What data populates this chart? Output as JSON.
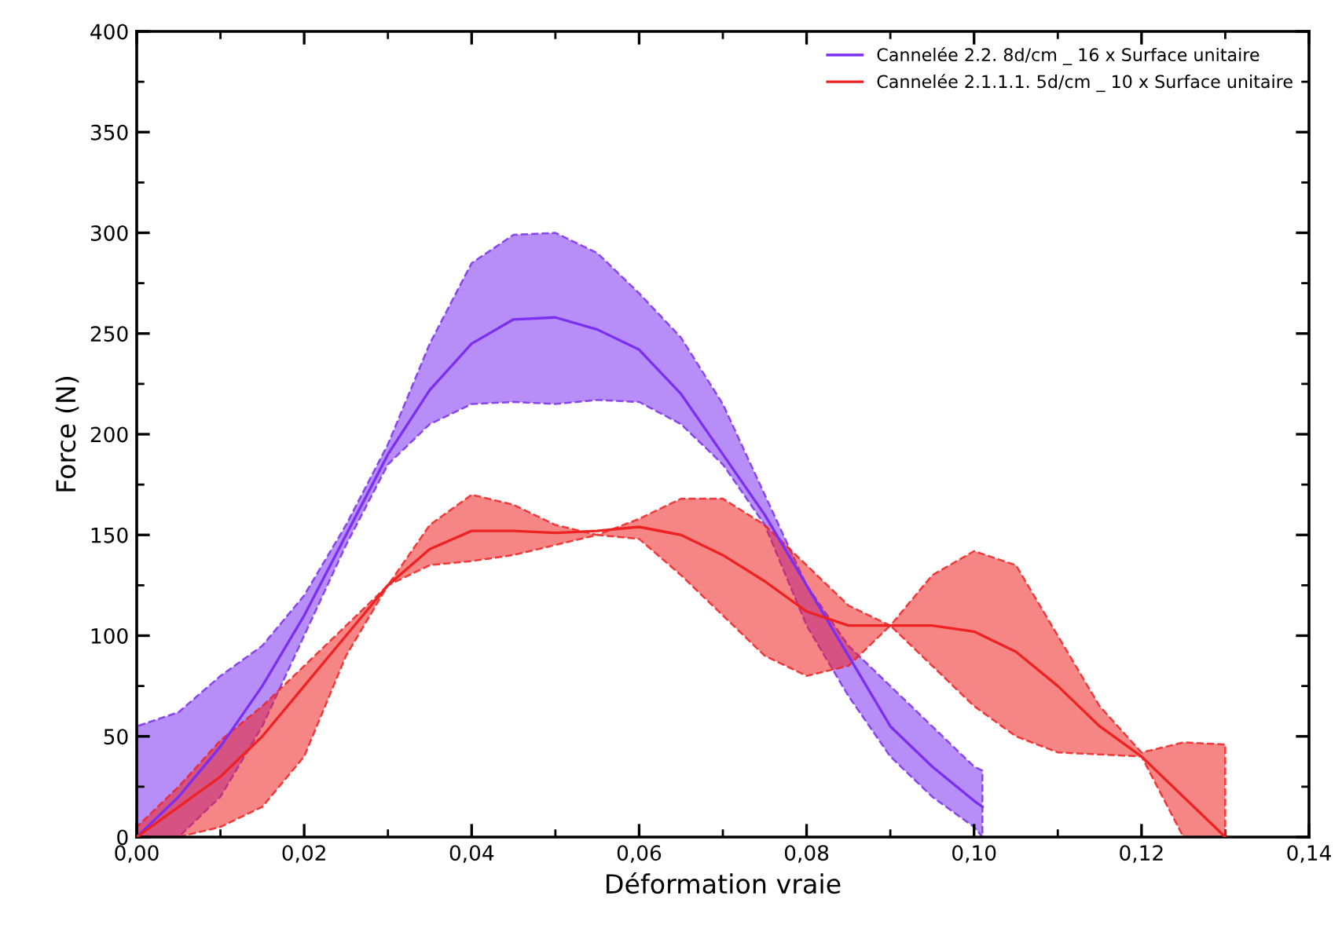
{
  "chart_data": {
    "type": "line",
    "xlabel": "Déformation vraie",
    "ylabel": "Force (N)",
    "xlim": [
      0,
      0.14
    ],
    "ylim": [
      0,
      400
    ],
    "xticks": [
      {
        "value": 0,
        "label": "0,00"
      },
      {
        "value": 0.02,
        "label": "0,02"
      },
      {
        "value": 0.04,
        "label": "0,04"
      },
      {
        "value": 0.06,
        "label": "0,06"
      },
      {
        "value": 0.08,
        "label": "0,08"
      },
      {
        "value": 0.1,
        "label": "0,10"
      },
      {
        "value": 0.12,
        "label": "0,12"
      },
      {
        "value": 0.14,
        "label": "0,14"
      }
    ],
    "yticks": [
      0,
      50,
      100,
      150,
      200,
      250,
      300,
      350,
      400
    ],
    "grid": false,
    "legend": "top right",
    "line_style": "solid",
    "marker": "none",
    "series": [
      {
        "name": "Cannelée 2.2. 8d/cm _ 16 x Surface unitaire",
        "color": "#7b2ff0",
        "x": [
          0,
          0.005,
          0.01,
          0.015,
          0.02,
          0.025,
          0.03,
          0.035,
          0.04,
          0.045,
          0.05,
          0.055,
          0.06,
          0.065,
          0.07,
          0.075,
          0.08,
          0.085,
          0.09,
          0.095,
          0.1,
          0.101
        ],
        "values": [
          0,
          20,
          45,
          75,
          110,
          150,
          190,
          222,
          245,
          257,
          258,
          252,
          242,
          220,
          190,
          160,
          125,
          90,
          55,
          35,
          18,
          15
        ],
        "upper": [
          55,
          62,
          80,
          95,
          120,
          155,
          195,
          245,
          285,
          299,
          300,
          290,
          270,
          248,
          215,
          170,
          125,
          95,
          75,
          55,
          35,
          33
        ],
        "lower": [
          0,
          0,
          20,
          55,
          100,
          145,
          185,
          205,
          215,
          216,
          215,
          217,
          216,
          205,
          185,
          155,
          105,
          70,
          40,
          20,
          5,
          0
        ]
      },
      {
        "name": "Cannelée 2.1.1.1. 5d/cm _ 10 x Surface unitaire",
        "color": "#ee2222",
        "x": [
          0,
          0.005,
          0.01,
          0.015,
          0.02,
          0.025,
          0.03,
          0.035,
          0.04,
          0.045,
          0.05,
          0.055,
          0.06,
          0.065,
          0.07,
          0.075,
          0.08,
          0.085,
          0.09,
          0.095,
          0.1,
          0.105,
          0.11,
          0.115,
          0.12,
          0.125,
          0.13
        ],
        "values": [
          0,
          15,
          30,
          50,
          75,
          100,
          125,
          143,
          152,
          152,
          151,
          152,
          154,
          150,
          140,
          127,
          112,
          105,
          105,
          105,
          102,
          92,
          75,
          55,
          40,
          20,
          0
        ],
        "upper": [
          5,
          25,
          48,
          65,
          85,
          105,
          125,
          155,
          170,
          165,
          155,
          150,
          158,
          168,
          168,
          155,
          135,
          115,
          105,
          130,
          142,
          135,
          100,
          65,
          42,
          47,
          46
        ],
        "lower": [
          0,
          0,
          5,
          15,
          40,
          90,
          125,
          135,
          137,
          140,
          145,
          150,
          148,
          130,
          110,
          90,
          80,
          85,
          105,
          85,
          65,
          50,
          42,
          41,
          40,
          0,
          0
        ]
      }
    ]
  }
}
